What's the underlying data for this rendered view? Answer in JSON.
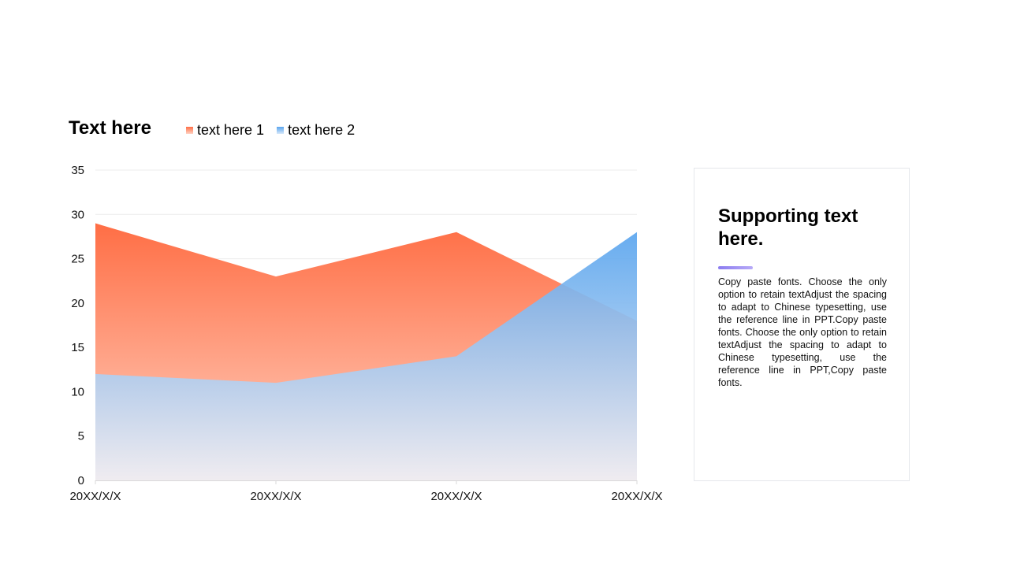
{
  "chart_data": {
    "type": "area",
    "title": "Text here",
    "categories": [
      "20XX/X/X",
      "20XX/X/X",
      "20XX/X/X",
      "20XX/X/X"
    ],
    "series": [
      {
        "name": "text here 1",
        "values": [
          29,
          23,
          28,
          18
        ],
        "color_top": "#ff6e45",
        "color_bottom": "#ffd3c3"
      },
      {
        "name": "text here 2",
        "values": [
          12,
          11,
          14,
          28
        ],
        "color_top": "#5aa5ee",
        "color_bottom": "#eeeef4"
      }
    ],
    "ylim": [
      0,
      35
    ],
    "yticks": [
      0,
      5,
      10,
      15,
      20,
      25,
      30,
      35
    ],
    "grid": true,
    "legend_position": "top"
  },
  "card": {
    "title": "Supporting text here.",
    "body": "Copy paste fonts. Choose the only option to retain textAdjust the spacing to adapt to Chinese typesetting, use the reference line in PPT.Copy paste fonts. Choose the only option to retain textAdjust the spacing to adapt to Chinese typesetting, use the reference line in PPT,Copy paste fonts.",
    "accent_color": "#8b7cf0"
  }
}
